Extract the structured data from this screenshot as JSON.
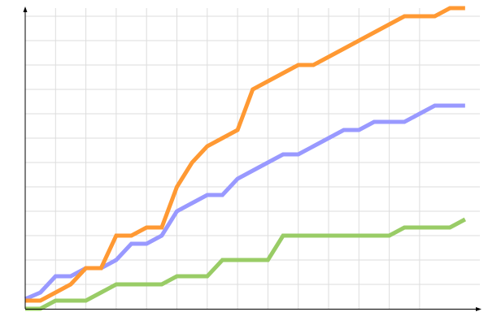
{
  "chart_data": {
    "type": "line",
    "title": "",
    "xlabel": "",
    "ylabel": "",
    "x": [
      0,
      1,
      2,
      3,
      4,
      5,
      6,
      7,
      8,
      9,
      10,
      11,
      12,
      13,
      14,
      15,
      16,
      17,
      18,
      19,
      20,
      21,
      22,
      23,
      24,
      25,
      26,
      27,
      28,
      29
    ],
    "xlim": [
      0,
      30
    ],
    "ylim": [
      0,
      37
    ],
    "grid": true,
    "legend": "none",
    "series": [
      {
        "color": "#ff9933",
        "values": [
          1,
          1,
          2,
          3,
          5,
          5,
          9,
          9,
          10,
          10,
          15,
          18,
          20,
          21,
          22,
          27,
          28,
          29,
          30,
          30,
          31,
          32,
          33,
          34,
          35,
          36,
          36,
          36,
          37,
          37
        ]
      },
      {
        "color": "#9999ff",
        "values": [
          1.2,
          2,
          4,
          4,
          5,
          5,
          6,
          8,
          8,
          9,
          12,
          13,
          14,
          14,
          16,
          17,
          18,
          19,
          19,
          20,
          21,
          22,
          22,
          23,
          23,
          23,
          24,
          25,
          25,
          25
        ]
      },
      {
        "color": "#99cc66",
        "values": [
          0,
          0,
          1,
          1,
          1,
          2,
          3,
          3,
          3,
          3,
          4,
          4,
          4,
          6,
          6,
          6,
          6,
          9,
          9,
          9,
          9,
          9,
          9,
          9,
          9,
          10,
          10,
          10,
          10,
          11
        ]
      }
    ]
  }
}
